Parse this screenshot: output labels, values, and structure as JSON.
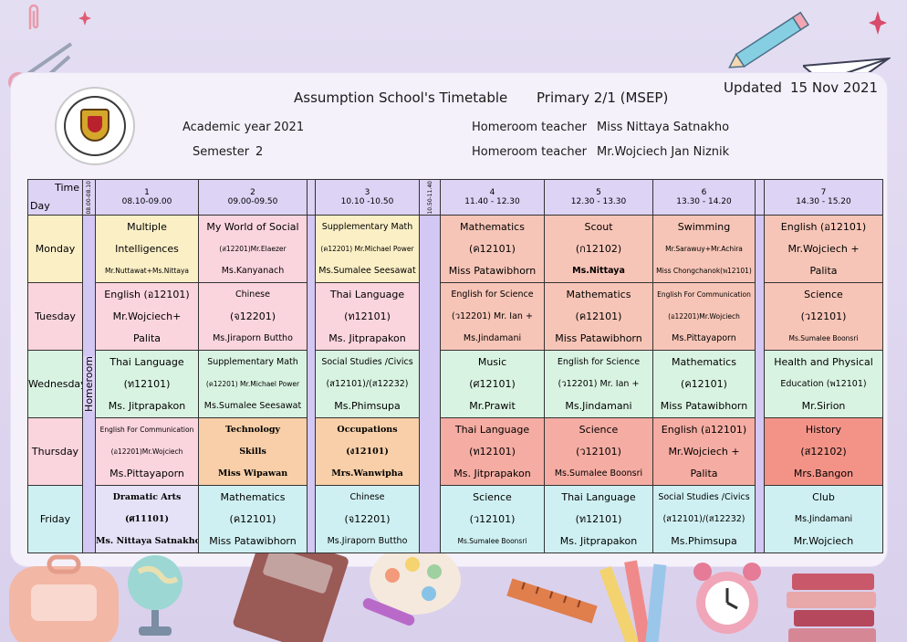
{
  "header": {
    "title": "Assumption School's Timetable",
    "class_label": "Primary  2/1 (MSEP)",
    "updated_label": "Updated",
    "updated_date": "15 Nov 2021",
    "academic_year_label": "Academic year",
    "academic_year": "2021",
    "semester_label": "Semester",
    "semester": "2",
    "homeroom_label_1": "Homeroom teacher",
    "homeroom_teacher_1": "Miss Nittaya  Satnakho",
    "homeroom_label_2": "Homeroom teacher",
    "homeroom_teacher_2": "Mr.Wojciech Jan Niznik"
  },
  "table": {
    "time_label": "Time",
    "day_label": "Day",
    "early_break": "08.00-08.10",
    "mid_break": "10.50-11.40",
    "homeroom": "Homeroom",
    "periods": [
      {
        "num": "1",
        "time": "08.10-09.00"
      },
      {
        "num": "2",
        "time": "09.00-09.50"
      },
      {
        "num": "3",
        "time": "10.10 -10.50"
      },
      {
        "num": "4",
        "time": "11.40  -  12.30"
      },
      {
        "num": "5",
        "time": "12.30  -  13.30"
      },
      {
        "num": "6",
        "time": "13.30 - 14.20"
      },
      {
        "num": "7",
        "time": "14.30 - 15.20"
      }
    ],
    "days": [
      {
        "name": "Monday",
        "cells": [
          [
            "Multiple",
            "Intelligences",
            "Mr.Nuttawat+Ms.Nittaya"
          ],
          [
            "My World of Social",
            "(ส12201)Mr.Elaezer",
            "Ms.Kanyanach"
          ],
          [
            "Supplementary  Math",
            "(ค12201) Mr.Michael Power",
            "Ms.Sumalee  Seesawat"
          ],
          [
            "Mathematics",
            "(ค12101)",
            "Miss Patawibhorn"
          ],
          [
            "Scout",
            "(ก12102)",
            "Ms.Nittaya"
          ],
          [
            "Swimming",
            "Mr.Sarawuy+Mr.Achira",
            "Miss Chongchanok(พ12101)"
          ],
          [
            "English (อ12101)",
            "Mr.Wojciech +",
            "Palita"
          ]
        ]
      },
      {
        "name": "Tuesday",
        "cells": [
          [
            "English (อ12101)",
            "Mr.Wojciech+",
            "Palita"
          ],
          [
            "Chinese",
            "(จ12201)",
            "Ms.Jiraporn  Buttho"
          ],
          [
            "Thai Language",
            "(ท12101)",
            "Ms. Jitprapakon"
          ],
          [
            "English for  Science",
            "(ว12201) Mr. Ian +",
            "Ms.Jindamani"
          ],
          [
            "Mathematics",
            "(ค12101)",
            "Miss Patawibhorn"
          ],
          [
            "English For Communication",
            "(อ12201)Mr.Wojciech",
            "Ms.Pittayaporn"
          ],
          [
            "Science",
            "(ว12101)",
            "Ms.Sumalee Boonsri"
          ]
        ]
      },
      {
        "name": "Wednesday",
        "cells": [
          [
            "Thai Language",
            "(ท12101)",
            "Ms. Jitprapakon"
          ],
          [
            "Supplementary  Math",
            "(ค12201) Mr.Michael Power",
            "Ms.Sumalee  Seesawat"
          ],
          [
            "Social Studies /Civics",
            "(ส12101)/(ส12232)",
            "Ms.Phimsupa"
          ],
          [
            "Music",
            "(ศ12101)",
            "Mr.Prawit"
          ],
          [
            "English for  Science",
            "(ว12201) Mr. Ian +",
            "Ms.Jindamani"
          ],
          [
            "Mathematics",
            "(ค12101)",
            "Miss Patawibhorn"
          ],
          [
            "Health and Physical",
            "Education (พ12101)",
            "Mr.Sirion"
          ]
        ]
      },
      {
        "name": "Thursday",
        "cells": [
          [
            "English For Communication",
            "(อ12201)Mr.Wojciech",
            "Ms.Pittayaporn"
          ],
          [
            "Technology",
            "Skills",
            "Miss Wipawan"
          ],
          [
            "Occupations",
            "(ง12101)",
            "Mrs.Wanwipha"
          ],
          [
            "Thai Language",
            "(ท12101)",
            "Ms. Jitprapakon"
          ],
          [
            "Science",
            "(ว12101)",
            "Ms.Sumalee Boonsri"
          ],
          [
            "English (อ12101)",
            "Mr.Wojciech +",
            "Palita"
          ],
          [
            "History",
            "(ส12102)",
            "Mrs.Bangon"
          ]
        ]
      },
      {
        "name": "Friday",
        "cells": [
          [
            "Dramatic  Arts",
            "(ศ11101)",
            "Ms. Nittaya Satnakho"
          ],
          [
            "Mathematics",
            "(ค12101)",
            "Miss Patawibhorn"
          ],
          [
            "Chinese",
            "(จ12201)",
            "Ms.Jiraporn  Buttho"
          ],
          [
            "Science",
            "(ว12101)",
            "Ms.Sumalee Boonsri"
          ],
          [
            "Thai Language",
            "(ท12101)",
            "Ms. Jitprapakon"
          ],
          [
            "Social Studies /Civics",
            "(ส12101)/(ส12232)",
            "Ms.Phimsupa"
          ],
          [
            "Club",
            "Ms.Jindamani",
            "Mr.Wojciech"
          ]
        ]
      }
    ]
  }
}
